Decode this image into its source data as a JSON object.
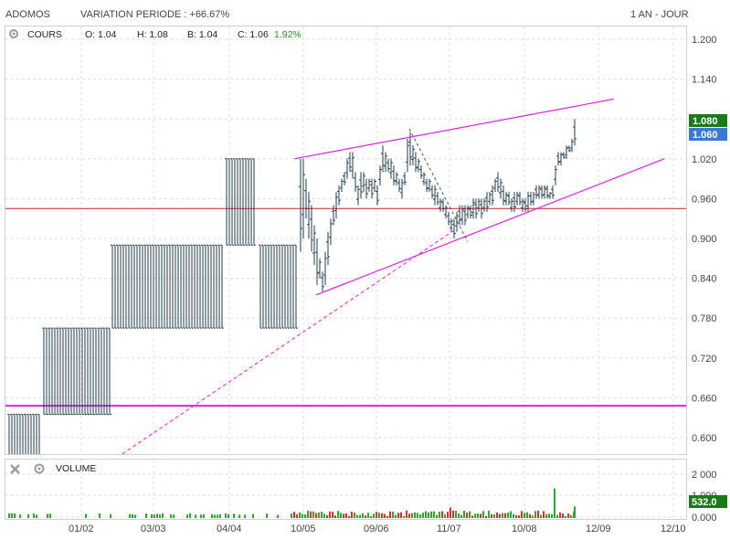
{
  "header": {
    "symbol": "ADOMOS",
    "variation": "VARIATION PERIODE : +66.67%",
    "range": "1 AN - JOUR"
  },
  "ohlc": {
    "label": "COURS",
    "o": "O: 1.04",
    "h": "H: 1.08",
    "b": "B: 1.04",
    "c": "C: 1.06",
    "pct": "1.92%"
  },
  "volume_panel": {
    "label": "VOLUME"
  },
  "price_tags": {
    "high": "1.080",
    "last": "1.060",
    "volume": "532.0"
  },
  "colors": {
    "bars": "#1f3b4d",
    "magenta": "#e020e0",
    "red_line": "#cc2222",
    "vol_up": "#2fa82f",
    "vol_down": "#d93030",
    "tag_green": "#1a7a1a",
    "tag_blue": "#3a78d8",
    "pct_green": "#1a9a1a"
  },
  "chart_data": [
    {
      "type": "ohlc",
      "title": "ADOMOS",
      "y_axis": {
        "range": [
          0.58,
          1.22
        ],
        "ticks": [
          "1.200",
          "1.140",
          "1.080",
          "1.020",
          "0.960",
          "0.900",
          "0.840",
          "0.780",
          "0.720",
          "0.660",
          "0.600"
        ]
      },
      "x_axis": {
        "ticks": [
          "01/02",
          "03/03",
          "04/04",
          "10/05",
          "09/06",
          "11/07",
          "10/08",
          "12/09",
          "12/10"
        ]
      },
      "price_segments": [
        {
          "from": "start",
          "to": "01/02",
          "low": 0.57,
          "high": 0.635
        },
        {
          "from": "01/02",
          "to": "late 01",
          "low": 0.635,
          "high": 0.765
        },
        {
          "from": "late 01",
          "to": "04/04",
          "low": 0.765,
          "high": 0.89
        },
        {
          "from": "04/04",
          "to": "mid 04",
          "low": 0.89,
          "high": 1.02
        },
        {
          "from": "mid 04",
          "to": "10/05",
          "low": 0.765,
          "high": 0.89
        },
        {
          "from": "10/05",
          "to": "end",
          "range_low": 0.82,
          "range_high": 1.08,
          "last_close": 1.06
        }
      ],
      "horizontal_lines": [
        0.945,
        0.648
      ],
      "last": {
        "open": 1.04,
        "high": 1.08,
        "low": 1.04,
        "close": 1.06,
        "change_pct": 1.92
      }
    },
    {
      "type": "bar",
      "title": "VOLUME",
      "y_axis": {
        "ticks": [
          "2 000",
          "1 000",
          "0.000"
        ]
      },
      "last_value": 532.0
    }
  ]
}
